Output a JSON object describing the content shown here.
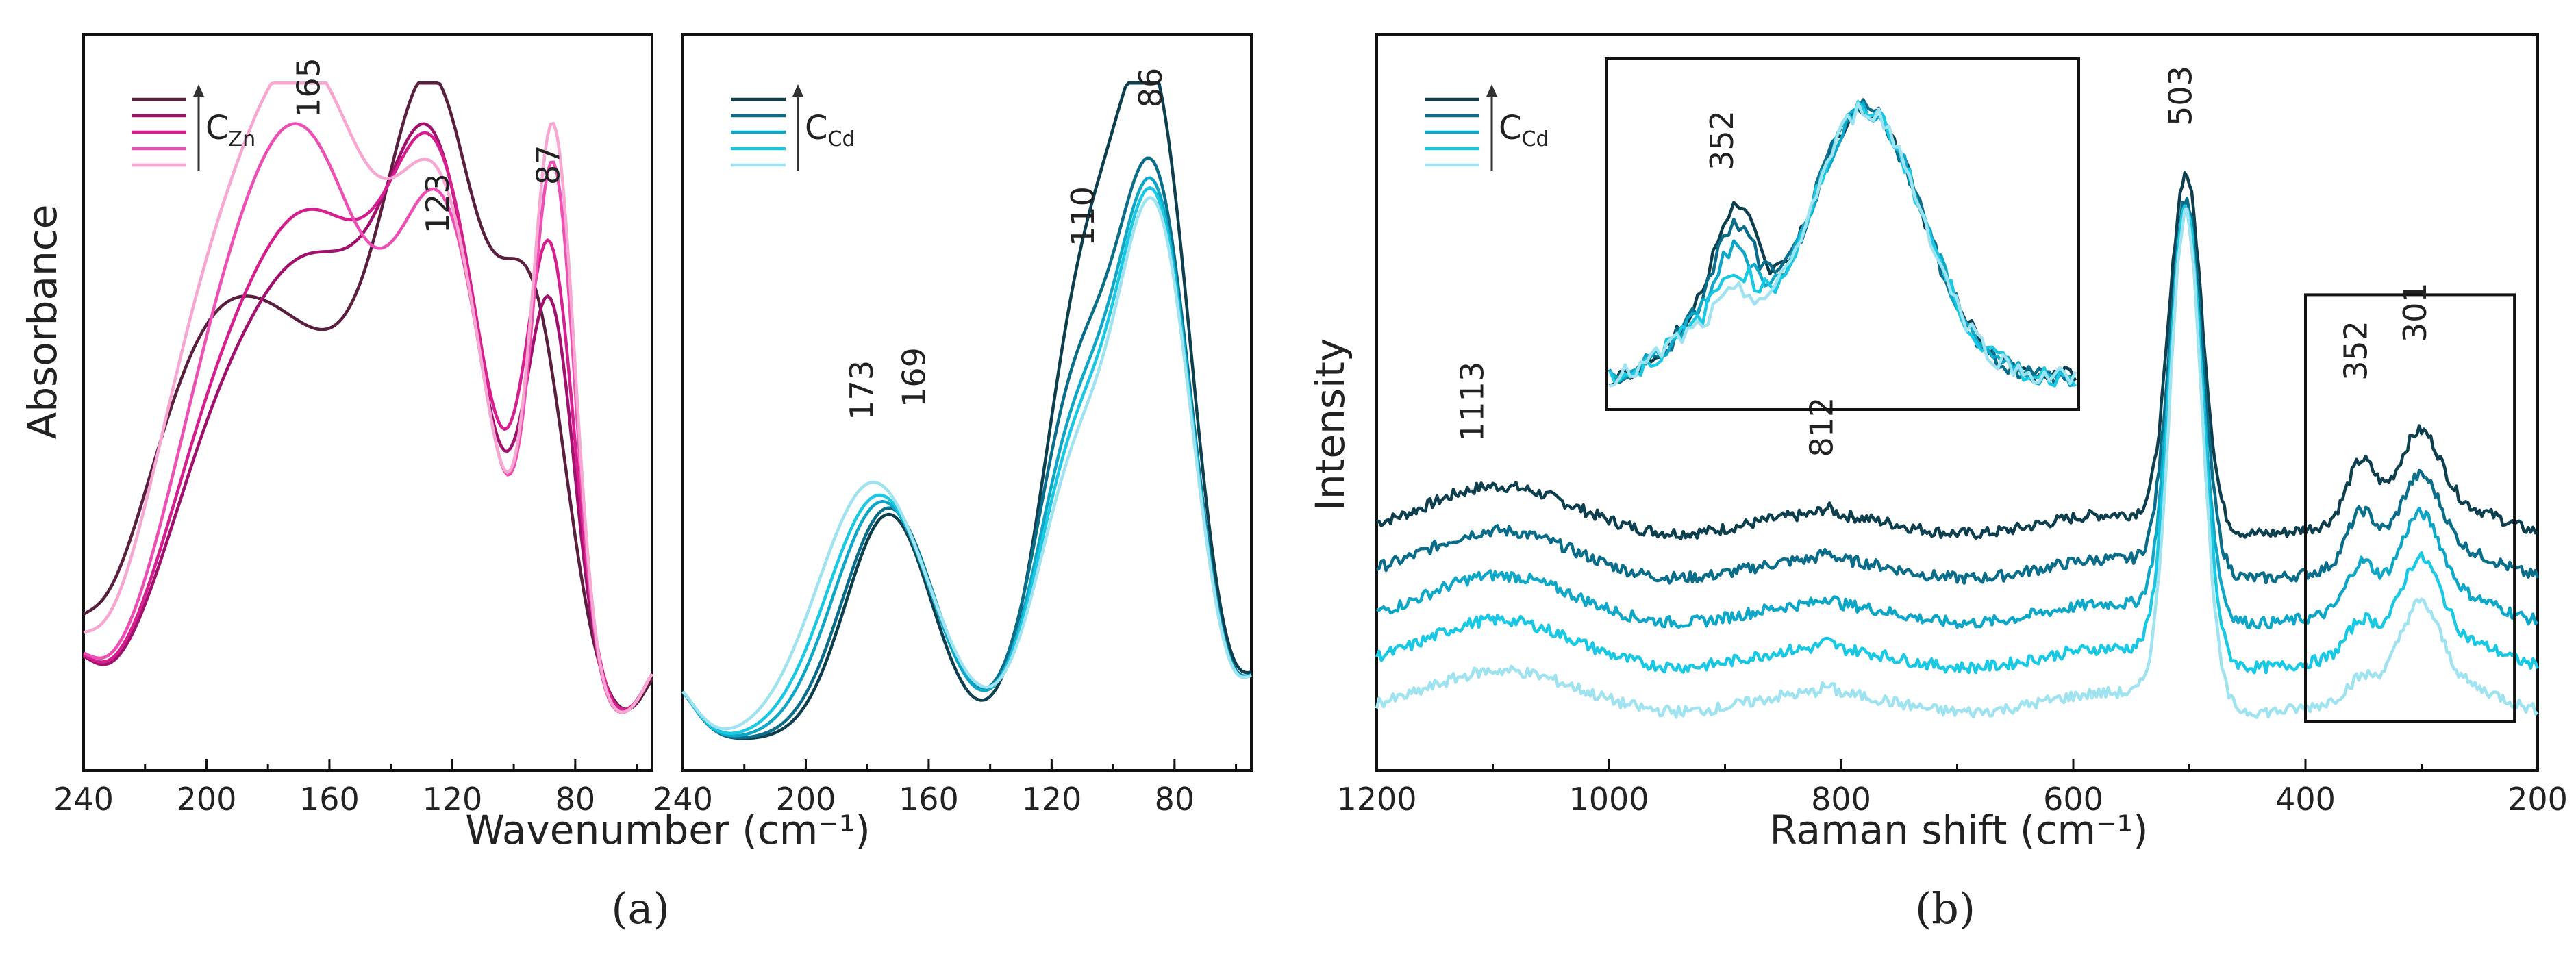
{
  "figure": {
    "panel_a_label": "(a)",
    "panel_b_label": "(b)"
  },
  "chart_data": [
    {
      "type": "line",
      "panel": "a-left",
      "ylabel": "Absorbance",
      "xlabel": "Wavenumber (cm⁻¹)",
      "xlim": [
        240,
        55
      ],
      "ylim": [
        0,
        1
      ],
      "x_reversed": true,
      "xticks": [
        240,
        200,
        160,
        120,
        80
      ],
      "legend": {
        "label_base": "C",
        "label_sub": "Zn",
        "placement": "top-left"
      },
      "annotations": [
        {
          "text": "165",
          "x": 165,
          "y": 1.0
        },
        {
          "text": "123",
          "x": 123,
          "y": 0.82
        },
        {
          "text": "87",
          "x": 87,
          "y": 0.88
        }
      ],
      "series": [
        {
          "color": "#5a1f3f",
          "peaks": [
            [
              125,
              0.82,
              16
            ],
            [
              93,
              0.55,
              11
            ],
            [
              170,
              0.55,
              30
            ],
            [
              205,
              0.3,
              20
            ]
          ],
          "base": 0.02
        },
        {
          "color": "#a0106c",
          "peaks": [
            [
              125,
              0.78,
              16
            ],
            [
              88,
              0.6,
              8
            ],
            [
              165,
              0.65,
              22
            ],
            [
              200,
              0.28,
              18
            ]
          ],
          "base": 0.03
        },
        {
          "color": "#d61e8e",
          "peaks": [
            [
              124,
              0.76,
              16
            ],
            [
              88,
              0.68,
              8
            ],
            [
              165,
              0.72,
              22
            ],
            [
              200,
              0.3,
              18
            ]
          ],
          "base": 0.03
        },
        {
          "color": "#ee4fb4",
          "peaks": [
            [
              122,
              0.7,
              15
            ],
            [
              87,
              0.82,
              7
            ],
            [
              167,
              0.85,
              22
            ],
            [
              200,
              0.32,
              18
            ]
          ],
          "base": 0.03
        },
        {
          "color": "#f7a7d1",
          "peaks": [
            [
              122,
              0.66,
              15
            ],
            [
              87,
              0.88,
              7
            ],
            [
              167,
              0.98,
              24
            ],
            [
              205,
              0.35,
              18
            ]
          ],
          "base": 0.03
        }
      ]
    },
    {
      "type": "line",
      "panel": "a-right",
      "xlim": [
        240,
        55
      ],
      "ylim": [
        0,
        1
      ],
      "x_reversed": true,
      "xticks": [
        240,
        200,
        160,
        120,
        80
      ],
      "legend": {
        "label_base": "C",
        "label_sub": "Cd",
        "placement": "top-left"
      },
      "annotations": [
        {
          "text": "173",
          "x": 180,
          "y": 0.53
        },
        {
          "text": "169",
          "x": 163,
          "y": 0.55
        },
        {
          "text": "110",
          "x": 108,
          "y": 0.8
        },
        {
          "text": "86",
          "x": 86,
          "y": 1.0
        }
      ],
      "series": [
        {
          "color": "#0e3f4f",
          "peaks": [
            [
              173,
              0.35,
              14
            ],
            [
              110,
              0.65,
              13
            ],
            [
              86,
              0.92,
              12
            ]
          ],
          "base": 0.0
        },
        {
          "color": "#0a6e8a",
          "peaks": [
            [
              173,
              0.36,
              15
            ],
            [
              112,
              0.52,
              13
            ],
            [
              86,
              0.82,
              12
            ]
          ],
          "base": 0.0
        },
        {
          "color": "#0fa7c7",
          "peaks": [
            [
              175,
              0.37,
              16
            ],
            [
              112,
              0.46,
              13
            ],
            [
              86,
              0.8,
              12
            ]
          ],
          "base": 0.0
        },
        {
          "color": "#19c9e4",
          "peaks": [
            [
              176,
              0.38,
              17
            ],
            [
              112,
              0.43,
              13
            ],
            [
              86,
              0.79,
              12
            ]
          ],
          "base": 0.0
        },
        {
          "color": "#9ee3ef",
          "peaks": [
            [
              178,
              0.4,
              18
            ],
            [
              112,
              0.4,
              13
            ],
            [
              86,
              0.78,
              12
            ]
          ],
          "base": 0.0
        }
      ]
    },
    {
      "type": "line",
      "panel": "b",
      "ylabel": "Intensity",
      "xlabel": "Raman shift (cm⁻¹)",
      "xlim": [
        1200,
        200
      ],
      "ylim": [
        0,
        1
      ],
      "x_reversed": true,
      "xticks": [
        1200,
        1000,
        800,
        600,
        400,
        200
      ],
      "legend": {
        "label_base": "C",
        "label_sub": "Cd",
        "placement": "top-left"
      },
      "annotations": [
        {
          "text": "1113",
          "x": 1113,
          "y": 0.52
        },
        {
          "text": "812",
          "x": 812,
          "y": 0.48
        },
        {
          "text": "503",
          "x": 503,
          "y": 1.0
        },
        {
          "text": "352",
          "x": 352,
          "y": 0.6
        },
        {
          "text": "301",
          "x": 301,
          "y": 0.66
        }
      ],
      "highlight_box": {
        "x_from": 400,
        "x_to": 220,
        "y_from": 0.05,
        "y_to": 0.72
      },
      "inset": {
        "annotation": {
          "text": "352"
        },
        "x_range": [
          400,
          220
        ]
      },
      "series": [
        {
          "color": "#0e3f4f",
          "offset": 0.36,
          "peak503": 0.55,
          "peak352": 0.09,
          "peak301": 0.13,
          "hump": 0.05
        },
        {
          "color": "#0a6e8a",
          "offset": 0.29,
          "peak503": 0.58,
          "peak352": 0.08,
          "peak301": 0.13,
          "hump": 0.05
        },
        {
          "color": "#0fa7c7",
          "offset": 0.22,
          "peak503": 0.63,
          "peak352": 0.07,
          "peak301": 0.14,
          "hump": 0.05
        },
        {
          "color": "#19c9e4",
          "offset": 0.15,
          "peak503": 0.71,
          "peak352": 0.05,
          "peak301": 0.14,
          "hump": 0.05
        },
        {
          "color": "#9ee3ef",
          "offset": 0.08,
          "peak503": 0.77,
          "peak352": 0.03,
          "peak301": 0.14,
          "hump": 0.04
        }
      ]
    }
  ]
}
